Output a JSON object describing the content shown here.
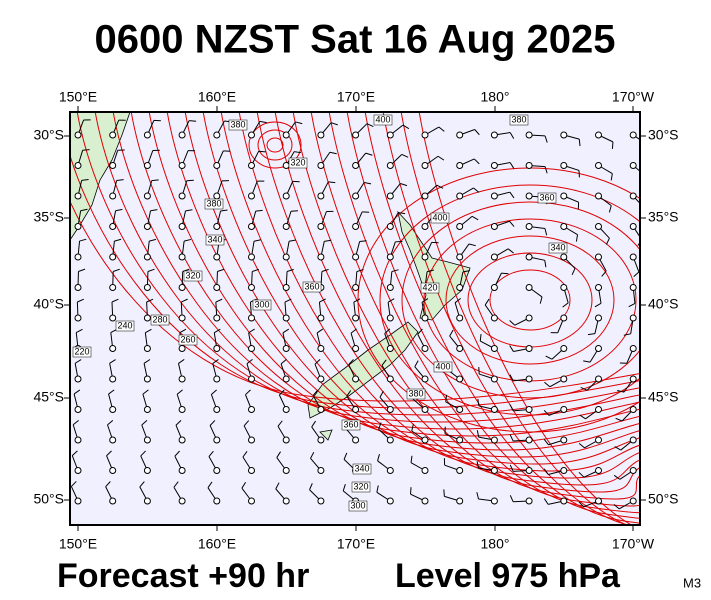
{
  "header": {
    "title": "0600 NZST Sat 16 Aug 2025"
  },
  "map": {
    "lon_labels": [
      "150°E",
      "160°E",
      "170°E",
      "180°",
      "170°W"
    ],
    "lat_labels": [
      "30°S",
      "35°S",
      "40°S",
      "45°S",
      "50°S"
    ],
    "contour_labels": [
      "380",
      "320",
      "400",
      "380",
      "360",
      "340",
      "400",
      "420",
      "380",
      "340",
      "320",
      "300",
      "280",
      "260",
      "240",
      "220",
      "360",
      "380",
      "360",
      "340",
      "320",
      "300",
      "400"
    ]
  },
  "footer": {
    "forecast": "Forecast +90 hr",
    "level": "Level 975 hPa",
    "model": "M3"
  }
}
